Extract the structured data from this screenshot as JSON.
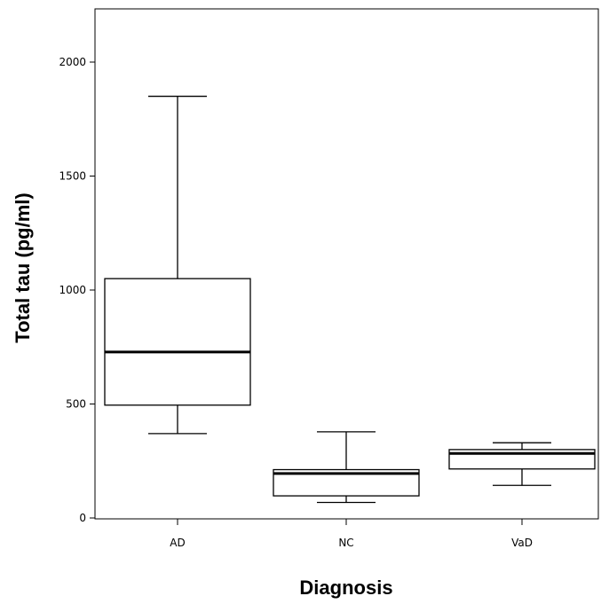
{
  "chart_data": {
    "type": "boxplot",
    "xlabel": "Diagnosis",
    "ylabel": "Total tau (pg/ml)",
    "ylim": [
      0,
      2200
    ],
    "yticks": [
      0,
      500,
      1000,
      1500,
      2000
    ],
    "grid": false,
    "categories": [
      "AD",
      "NC",
      "VaD"
    ],
    "boxes": [
      {
        "category": "AD",
        "whisker_low": 370,
        "q1": 495,
        "median": 728,
        "q3": 1050,
        "whisker_high": 1850
      },
      {
        "category": "NC",
        "whisker_low": 68,
        "q1": 97,
        "median": 195,
        "q3": 212,
        "whisker_high": 378
      },
      {
        "category": "VaD",
        "whisker_low": 143,
        "q1": 215,
        "median": 283,
        "q3": 300,
        "whisker_high": 330
      }
    ]
  }
}
